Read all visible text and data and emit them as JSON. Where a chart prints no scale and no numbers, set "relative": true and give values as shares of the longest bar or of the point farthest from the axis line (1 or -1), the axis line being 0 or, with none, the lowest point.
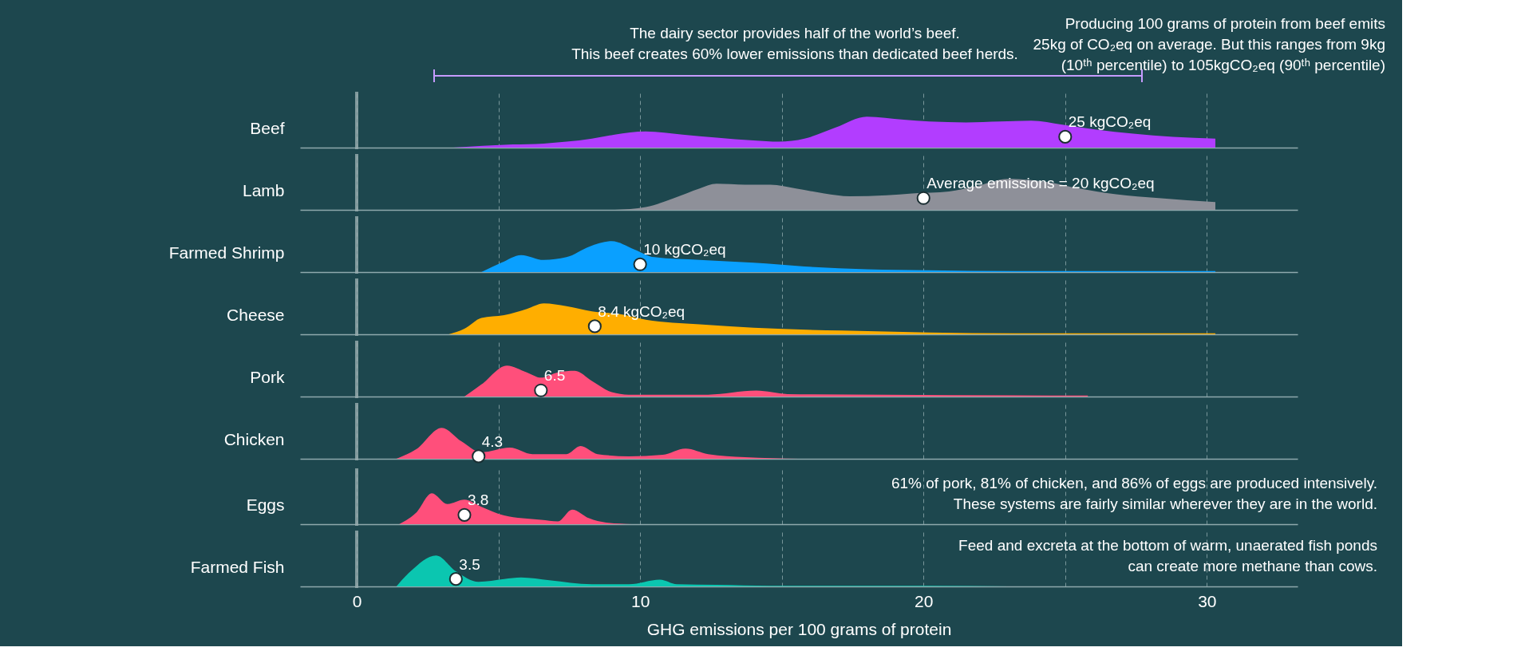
{
  "chart_data": [
    {
      "type": "other",
      "annotations": [
        "The dairy sector provides half of the world’s beef.\nThis beef creates 60% lower emissions than dedicated beef herds.",
        "Producing 100 grams of protein from beef emits\n25kg of CO₂eq on average. But this ranges from 9kg\n(10ᵗʰ percentile) to 105kgCO₂eq (90ᵗʰ percentile)"
      ]
    },
    {
      "type": "area",
      "ylabel": "Beef",
      "relative": true,
      "xlim": [
        -2,
        33.2
      ],
      "xticks": [
        0,
        {
          "value": 5,
          "label": null
        },
        10,
        {
          "value": 15,
          "label": null
        },
        20,
        {
          "value": 25,
          "label": null
        },
        30
      ],
      "grid": "x",
      "tick_labels": false,
      "ref_lines": [
        {
          "axis": "x",
          "value": 0,
          "color": "#9aaeb0"
        }
      ],
      "annotations": [
        {
          "text": "25 kgCO₂eq",
          "x": 25,
          "y": 0.35
        }
      ],
      "series": [
        {
          "color": "#b23dff",
          "x": [
            3.4,
            5.5,
            6.6,
            7.4,
            8.3,
            9.1,
            10.2,
            11.5,
            12.7,
            14.0,
            14.9,
            15.8,
            16.9,
            18.0,
            19.3,
            20.2,
            21.5,
            22.7,
            23.8,
            24.9,
            26.1,
            27.4,
            28.8,
            30.3
          ],
          "values": [
            0,
            0.1,
            0.13,
            0.19,
            0.29,
            0.42,
            0.52,
            0.42,
            0.32,
            0.23,
            0.19,
            0.29,
            0.65,
            1,
            0.9,
            0.84,
            0.81,
            0.84,
            0.87,
            0.74,
            0.58,
            0.45,
            0.35,
            0.29
          ]
        },
        {
          "type": "scatter",
          "marker": "circle",
          "color": "#ffffff",
          "x": [
            25
          ],
          "values": [
            0.35
          ]
        }
      ]
    },
    {
      "type": "area",
      "ylabel": "Lamb",
      "relative": true,
      "xlim": [
        -2,
        33.2
      ],
      "xticks": [
        0,
        {
          "value": 5,
          "label": null
        },
        10,
        {
          "value": 15,
          "label": null
        },
        20,
        {
          "value": 25,
          "label": null
        },
        30
      ],
      "grid": "x",
      "tick_labels": false,
      "ref_lines": [
        {
          "axis": "x",
          "value": 0,
          "color": "#9aaeb0"
        }
      ],
      "annotations": [
        {
          "text": "Average emissions = 20 kgCO₂eq",
          "x": 20,
          "y": 0.38
        }
      ],
      "series": [
        {
          "color": "#8e9099",
          "x": [
            9.1,
            10.2,
            11.2,
            12.1,
            12.7,
            13.7,
            14.6,
            15.5,
            16.5,
            17.4,
            18.7,
            19.6,
            20.9,
            21.8,
            23.0,
            24.3,
            25.5,
            26.8,
            28.3,
            30.3
          ],
          "values": [
            0,
            0.09,
            0.38,
            0.69,
            0.84,
            0.81,
            0.81,
            0.69,
            0.53,
            0.44,
            0.47,
            0.53,
            0.59,
            0.75,
            1,
            0.91,
            0.69,
            0.5,
            0.38,
            0.25
          ]
        },
        {
          "type": "scatter",
          "marker": "circle",
          "color": "#ffffff",
          "x": [
            20
          ],
          "values": [
            0.38
          ]
        }
      ]
    },
    {
      "type": "area",
      "ylabel": "Farmed Shrimp",
      "relative": true,
      "xlim": [
        -2,
        33.2
      ],
      "xticks": [
        0,
        {
          "value": 5,
          "label": null
        },
        10,
        {
          "value": 15,
          "label": null
        },
        20,
        {
          "value": 25,
          "label": null
        },
        30
      ],
      "grid": "x",
      "tick_labels": false,
      "ref_lines": [
        {
          "axis": "x",
          "value": 0,
          "color": "#9aaeb0"
        }
      ],
      "annotations": [
        {
          "text": "10 kgCO₂eq",
          "x": 10,
          "y": 0.25
        }
      ],
      "series": [
        {
          "color": "#0aa0ff",
          "x": [
            4.4,
            5.1,
            5.8,
            6.6,
            7.4,
            8.2,
            9.0,
            9.8,
            10.5,
            12.1,
            14.0,
            15.8,
            18.0,
            20.2,
            23.3,
            30.3
          ],
          "values": [
            0,
            0.3,
            0.55,
            0.39,
            0.48,
            0.82,
            1,
            0.73,
            0.48,
            0.39,
            0.3,
            0.18,
            0.09,
            0.06,
            0.03,
            0.03
          ]
        },
        {
          "type": "scatter",
          "marker": "circle",
          "color": "#ffffff",
          "x": [
            10
          ],
          "values": [
            0.25
          ]
        }
      ]
    },
    {
      "type": "area",
      "ylabel": "Cheese",
      "relative": true,
      "xlim": [
        -2,
        33.2
      ],
      "xticks": [
        0,
        {
          "value": 5,
          "label": null
        },
        10,
        {
          "value": 15,
          "label": null
        },
        20,
        {
          "value": 25,
          "label": null
        },
        30
      ],
      "grid": "x",
      "tick_labels": false,
      "ref_lines": [
        {
          "axis": "x",
          "value": 0,
          "color": "#9aaeb0"
        }
      ],
      "annotations": [
        {
          "text": "8.4 kgCO₂eq",
          "x": 8.4,
          "y": 0.26
        }
      ],
      "series": [
        {
          "color": "#ffae00",
          "x": [
            3.25,
            3.8,
            4.4,
            5.2,
            6.0,
            6.6,
            7.4,
            8.3,
            9.3,
            10.2,
            12.1,
            14.0,
            17.1,
            20.2,
            24.9,
            30.3
          ],
          "values": [
            0,
            0.18,
            0.53,
            0.62,
            0.82,
            1,
            0.91,
            0.74,
            0.65,
            0.47,
            0.32,
            0.21,
            0.12,
            0.06,
            0.03,
            0.03
          ]
        },
        {
          "type": "scatter",
          "marker": "circle",
          "color": "#ffffff",
          "x": [
            8.4
          ],
          "values": [
            0.26
          ]
        }
      ]
    },
    {
      "type": "area",
      "ylabel": "Pork",
      "relative": true,
      "xlim": [
        -2,
        33.2
      ],
      "xticks": [
        0,
        {
          "value": 5,
          "label": null
        },
        10,
        {
          "value": 15,
          "label": null
        },
        20,
        {
          "value": 25,
          "label": null
        },
        30
      ],
      "grid": "x",
      "tick_labels": false,
      "ref_lines": [
        {
          "axis": "x",
          "value": 0,
          "color": "#9aaeb0"
        }
      ],
      "annotations": [
        {
          "text": "6.5",
          "x": 6.5,
          "y": 0.2
        }
      ],
      "series": [
        {
          "color": "#ff4f7b",
          "x": [
            3.8,
            4.4,
            5.3,
            6.0,
            6.5,
            7.1,
            7.7,
            8.3,
            9.0,
            9.6,
            12.4,
            14.1,
            15.2,
            18.7,
            25.8
          ],
          "values": [
            0,
            0.39,
            1,
            0.78,
            0.61,
            0.78,
            0.83,
            0.5,
            0.14,
            0.06,
            0.06,
            0.19,
            0.08,
            0.06,
            0.03
          ]
        },
        {
          "type": "scatter",
          "marker": "circle",
          "color": "#ffffff",
          "x": [
            6.5
          ],
          "values": [
            0.2
          ]
        }
      ]
    },
    {
      "type": "area",
      "ylabel": "Chicken",
      "relative": true,
      "xlim": [
        -2,
        33.2
      ],
      "xticks": [
        0,
        {
          "value": 5,
          "label": null
        },
        10,
        {
          "value": 15,
          "label": null
        },
        20,
        {
          "value": 25,
          "label": null
        },
        30
      ],
      "grid": "x",
      "tick_labels": false,
      "ref_lines": [
        {
          "axis": "x",
          "value": 0,
          "color": "#9aaeb0"
        }
      ],
      "annotations": [
        {
          "text": "4.3",
          "x": 4.3,
          "y": 0.08
        }
      ],
      "series": [
        {
          "color": "#ff4f7b",
          "x": [
            1.4,
            2.1,
            3.0,
            3.7,
            4.4,
            5.4,
            6.2,
            7.4,
            7.9,
            8.5,
            9.6,
            10.8,
            11.6,
            12.4,
            13.7,
            15.6
          ],
          "values": [
            0,
            0.31,
            1,
            0.56,
            0.21,
            0.36,
            0.15,
            0.15,
            0.41,
            0.15,
            0.08,
            0.13,
            0.33,
            0.15,
            0.05,
            0
          ]
        },
        {
          "type": "scatter",
          "marker": "circle",
          "color": "#ffffff",
          "x": [
            4.3
          ],
          "values": [
            0.08
          ]
        }
      ]
    },
    {
      "type": "area",
      "ylabel": "Eggs",
      "relative": true,
      "xlim": [
        -2,
        33.2
      ],
      "xticks": [
        0,
        {
          "value": 5,
          "label": null
        },
        10,
        {
          "value": 15,
          "label": null
        },
        20,
        {
          "value": 25,
          "label": null
        },
        30
      ],
      "grid": "x",
      "tick_labels": false,
      "ref_lines": [
        {
          "axis": "x",
          "value": 0,
          "color": "#9aaeb0"
        }
      ],
      "annotations": [
        "61% of pork, 81% of chicken, and 86% of eggs are produced intensively.\nThese systems are fairly similar wherever they are in the world.",
        {
          "text": "3.8",
          "x": 3.8,
          "y": 0.3
        }
      ],
      "series": [
        {
          "color": "#ff4f7b",
          "x": [
            1.5,
            2.1,
            2.65,
            3.2,
            3.8,
            4.4,
            5.2,
            6.5,
            7.1,
            7.6,
            8.2,
            8.8,
            9.7
          ],
          "values": [
            0,
            0.37,
            1,
            0.65,
            0.79,
            0.56,
            0.28,
            0.14,
            0.09,
            0.47,
            0.19,
            0.05,
            0
          ]
        },
        {
          "type": "scatter",
          "marker": "circle",
          "color": "#ffffff",
          "x": [
            3.8
          ],
          "values": [
            0.3
          ]
        }
      ]
    },
    {
      "type": "area",
      "ylabel": "Farmed Fish",
      "xlabel": "GHG emissions per 100 grams of protein",
      "relative": true,
      "xlim": [
        -2,
        33.2
      ],
      "xticks": [
        0,
        {
          "value": 5,
          "label": null
        },
        10,
        {
          "value": 15,
          "label": null
        },
        20,
        {
          "value": 25,
          "label": null
        },
        30
      ],
      "grid": "x",
      "tick_labels": "x",
      "ref_lines": [
        {
          "axis": "x",
          "value": 0,
          "color": "#9aaeb0"
        }
      ],
      "annotations": [
        "Feed and excreta at the bottom of warm, unaerated fish ponds\ncan create more methane than cows.",
        {
          "text": "3.5",
          "x": 3.5,
          "y": 0.24
        }
      ],
      "series": [
        {
          "color": "#0bc6b0",
          "x": [
            1.4,
            1.9,
            2.8,
            3.5,
            4.3,
            5.2,
            5.8,
            6.8,
            8.3,
            9.6,
            10.7,
            11.3,
            12.7,
            14.6,
            17.1,
            20.2,
            23.0
          ],
          "values": [
            0,
            0.49,
            1,
            0.49,
            0.15,
            0.24,
            0.29,
            0.2,
            0.07,
            0.07,
            0.22,
            0.07,
            0.05,
            0.02,
            0.02,
            0.02,
            0
          ]
        },
        {
          "type": "scatter",
          "marker": "circle",
          "color": "#ffffff",
          "x": [
            3.5
          ],
          "values": [
            0.24
          ]
        }
      ]
    }
  ]
}
